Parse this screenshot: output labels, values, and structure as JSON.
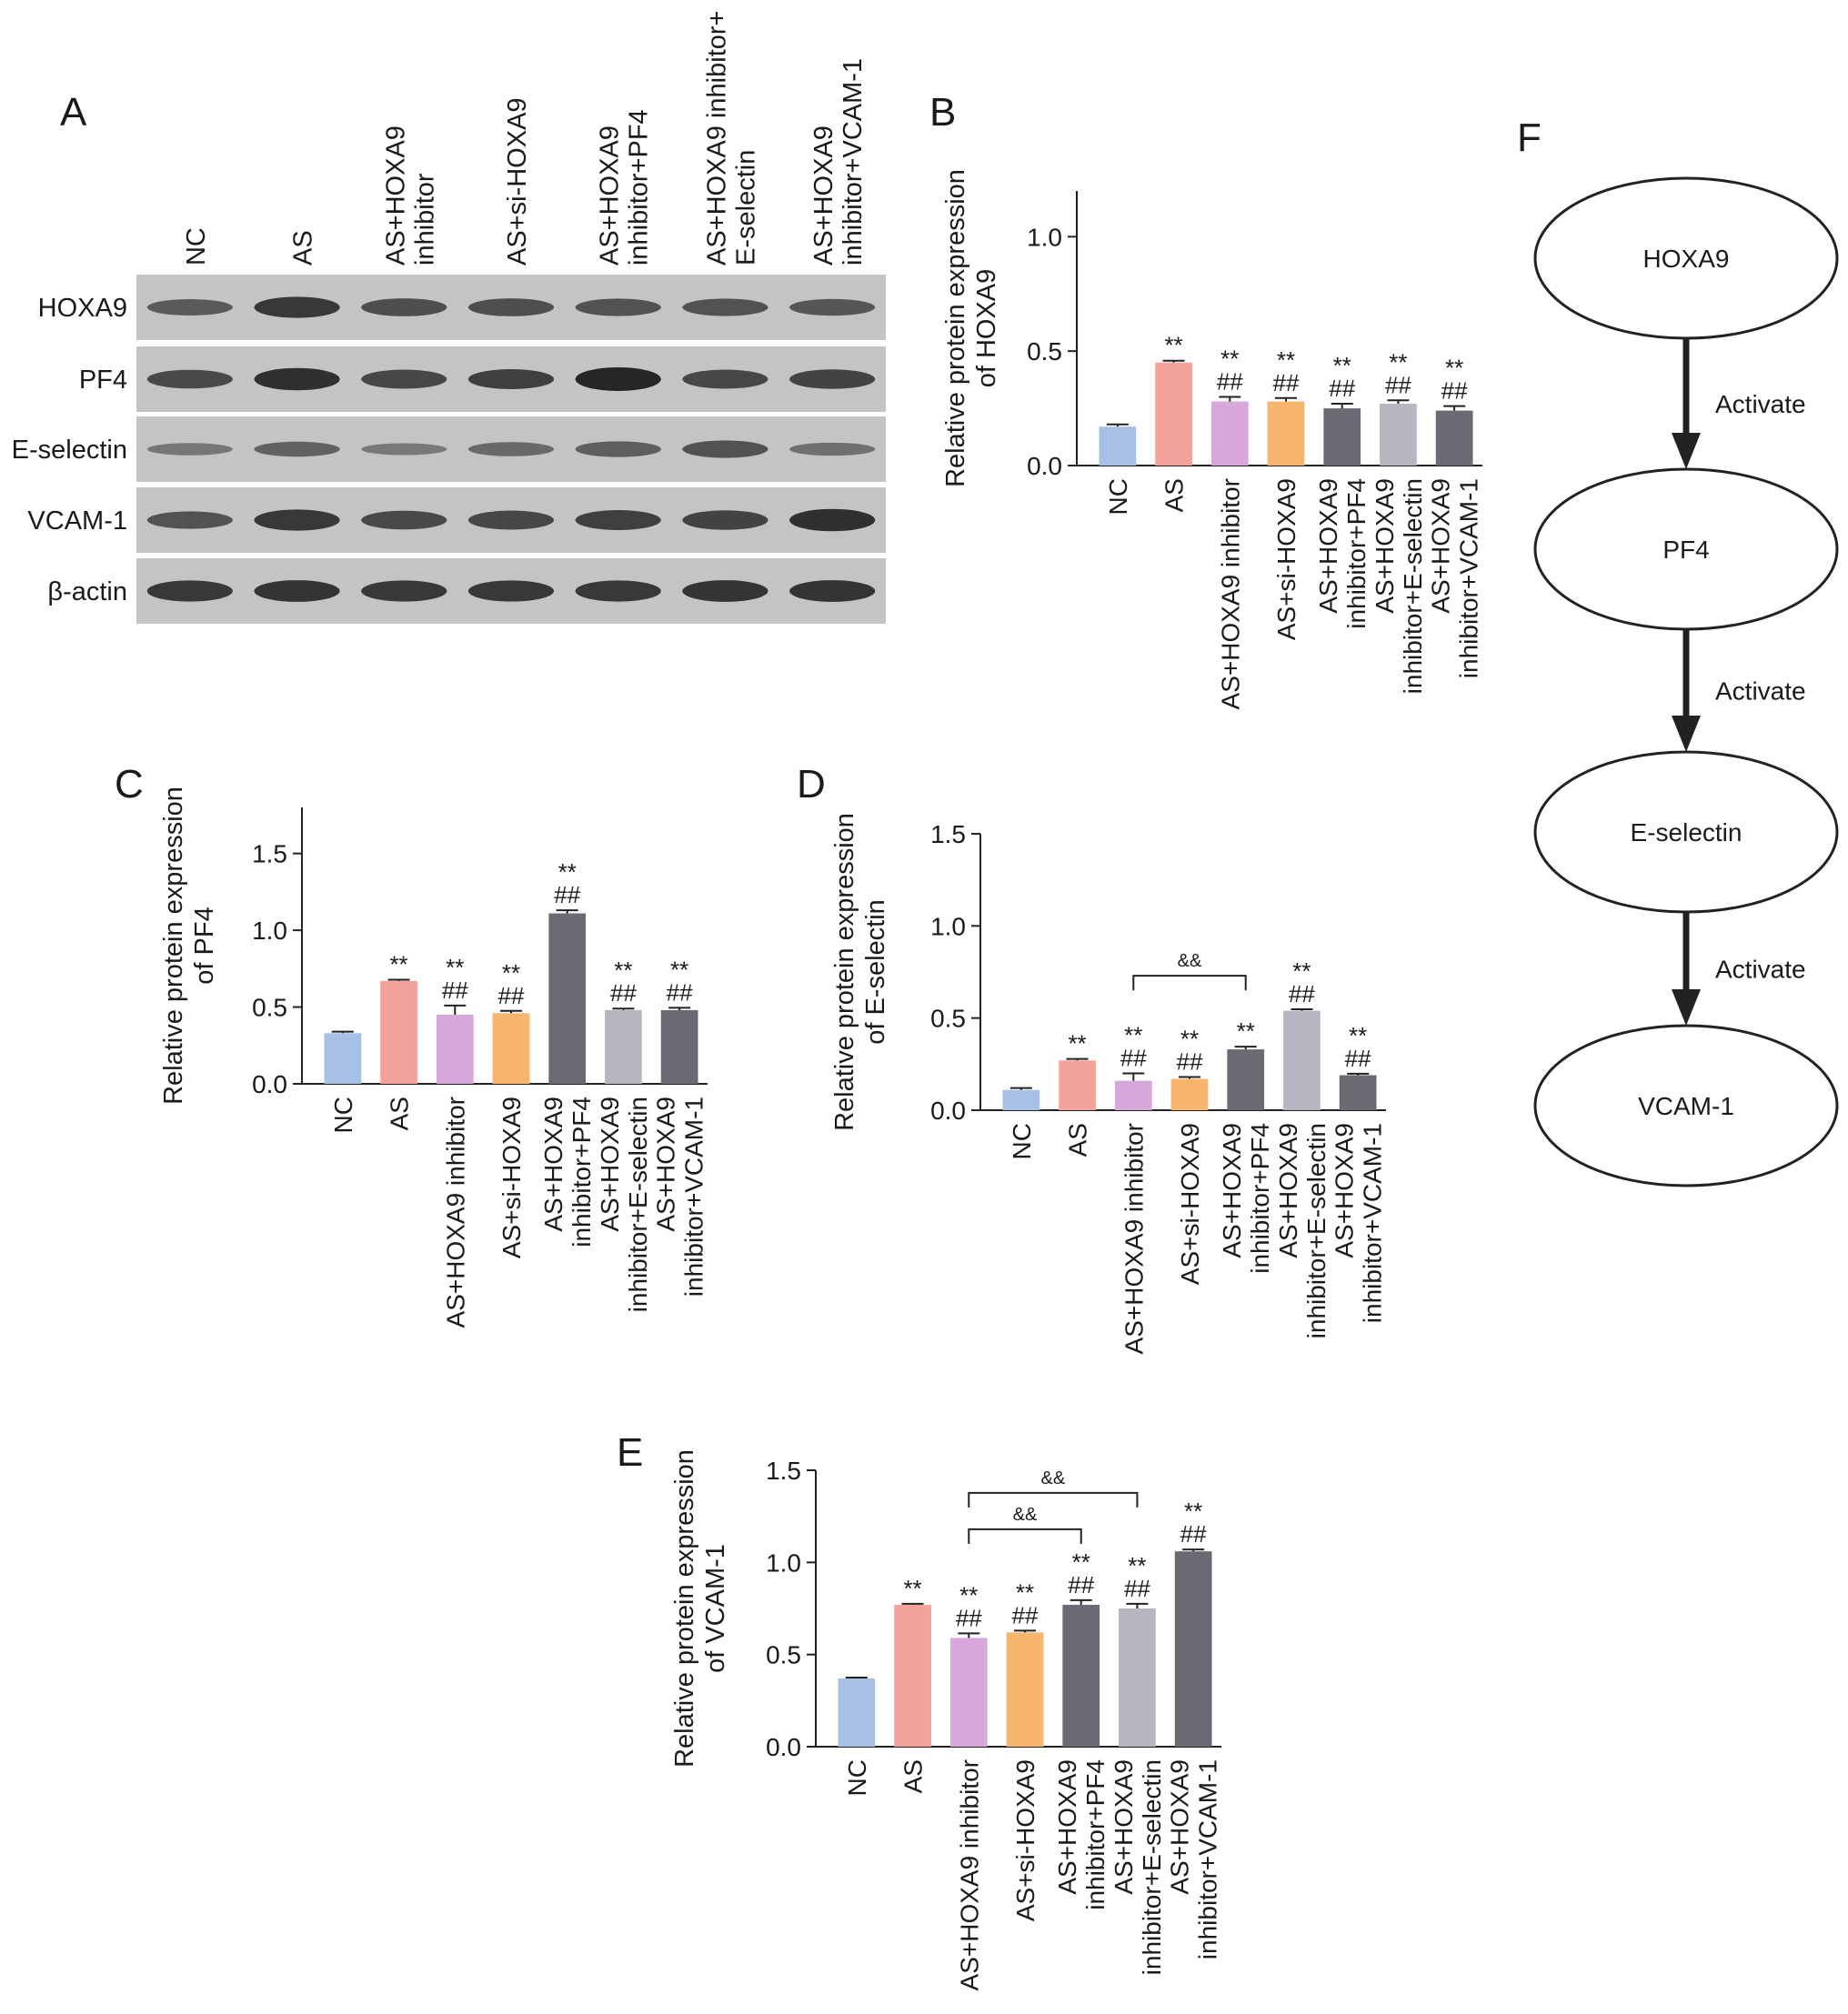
{
  "panel_labels": {
    "a": "A",
    "b": "B",
    "c": "C",
    "d": "D",
    "e": "E",
    "f": "F"
  },
  "blot": {
    "lane_labels": [
      [
        "NC"
      ],
      [
        "AS"
      ],
      [
        "AS+HOXA9",
        "inhibitor"
      ],
      [
        "AS+si-HOXA9"
      ],
      [
        "AS+HOXA9",
        "inhibitor+PF4"
      ],
      [
        "AS+HOXA9 inhibitor+",
        "E-selectin"
      ],
      [
        "AS+HOXA9",
        "inhibitor+VCAM-1"
      ]
    ],
    "row_labels": [
      "HOXA9",
      "PF4",
      "E-selectin",
      "VCAM-1",
      "β-actin"
    ],
    "band_intensity": [
      [
        0.55,
        0.85,
        0.65,
        0.65,
        0.62,
        0.62,
        0.58
      ],
      [
        0.7,
        0.92,
        0.72,
        0.78,
        1.0,
        0.72,
        0.75
      ],
      [
        0.3,
        0.48,
        0.28,
        0.42,
        0.52,
        0.62,
        0.35
      ],
      [
        0.62,
        0.85,
        0.7,
        0.72,
        0.78,
        0.75,
        0.92
      ],
      [
        0.85,
        0.88,
        0.85,
        0.85,
        0.85,
        0.88,
        0.88
      ]
    ]
  },
  "chart_data": [
    {
      "type": "bar",
      "panel": "B",
      "ylabel": [
        "Relative protein expression",
        "of HOXA9"
      ],
      "ylim": [
        0,
        1.2
      ],
      "yticks": [
        "0.0",
        "0.5",
        "1.0"
      ],
      "categories": [
        [
          "NC"
        ],
        [
          "AS"
        ],
        [
          "AS+HOXA9 inhibitor"
        ],
        [
          "AS+si-HOXA9"
        ],
        [
          "AS+HOXA9",
          "inhibitor+PF4"
        ],
        [
          "AS+HOXA9",
          "inhibitor+E-selectin"
        ],
        [
          "AS+HOXA9",
          "inhibitor+VCAM-1"
        ]
      ],
      "values": [
        0.17,
        0.45,
        0.28,
        0.28,
        0.25,
        0.27,
        0.24
      ],
      "errors": [
        0.01,
        0.008,
        0.02,
        0.015,
        0.02,
        0.015,
        0.02
      ],
      "colors": [
        "#a7c1e6",
        "#f4a39c",
        "#d7a8d9",
        "#f8b56e",
        "#6a6a72",
        "#b6b6c0",
        "#6a6a72"
      ],
      "annotations": [
        [],
        [
          "**"
        ],
        [
          "**",
          "##"
        ],
        [
          "**",
          "##"
        ],
        [
          "**",
          "##"
        ],
        [
          "**",
          "##"
        ],
        [
          "**",
          "##"
        ]
      ],
      "brackets": []
    },
    {
      "type": "bar",
      "panel": "C",
      "ylabel": [
        "Relative protein expression",
        "of PF4"
      ],
      "ylim": [
        0,
        1.8
      ],
      "yticks": [
        "0.0",
        "0.5",
        "1.0",
        "1.5"
      ],
      "categories": [
        [
          "NC"
        ],
        [
          "AS"
        ],
        [
          "AS+HOXA9 inhibitor"
        ],
        [
          "AS+si-HOXA9"
        ],
        [
          "AS+HOXA9",
          "inhibitor+PF4"
        ],
        [
          "AS+HOXA9",
          "inhibitor+E-selectin"
        ],
        [
          "AS+HOXA9",
          "inhibitor+VCAM-1"
        ]
      ],
      "values": [
        0.33,
        0.67,
        0.45,
        0.46,
        1.11,
        0.48,
        0.48
      ],
      "errors": [
        0.01,
        0.008,
        0.06,
        0.015,
        0.02,
        0.01,
        0.015
      ],
      "colors": [
        "#a7c1e6",
        "#f4a39c",
        "#d7a8d9",
        "#f8b56e",
        "#6a6a72",
        "#b6b6c0",
        "#6a6a72"
      ],
      "annotations": [
        [],
        [
          "**"
        ],
        [
          "**",
          "##"
        ],
        [
          "**",
          "##"
        ],
        [
          "**",
          "##"
        ],
        [
          "**",
          "##"
        ],
        [
          "**",
          "##"
        ]
      ],
      "brackets": []
    },
    {
      "type": "bar",
      "panel": "D",
      "ylabel": [
        "Relative protein expression",
        "of E-selectin"
      ],
      "ylim": [
        0,
        1.5
      ],
      "yticks": [
        "0.0",
        "0.5",
        "1.0",
        "1.5"
      ],
      "categories": [
        [
          "NC"
        ],
        [
          "AS"
        ],
        [
          "AS+HOXA9 inhibitor"
        ],
        [
          "AS+si-HOXA9"
        ],
        [
          "AS+HOXA9",
          "inhibitor+PF4"
        ],
        [
          "AS+HOXA9",
          "inhibitor+E-selectin"
        ],
        [
          "AS+HOXA9",
          "inhibitor+VCAM-1"
        ]
      ],
      "values": [
        0.11,
        0.27,
        0.16,
        0.17,
        0.33,
        0.54,
        0.19
      ],
      "errors": [
        0.01,
        0.008,
        0.04,
        0.01,
        0.015,
        0.008,
        0.008
      ],
      "colors": [
        "#a7c1e6",
        "#f4a39c",
        "#d7a8d9",
        "#f8b56e",
        "#6a6a72",
        "#b6b6c0",
        "#6a6a72"
      ],
      "annotations": [
        [],
        [
          "**"
        ],
        [
          "**",
          "##"
        ],
        [
          "**",
          "##"
        ],
        [
          "**"
        ],
        [
          "**",
          "##"
        ],
        [
          "**",
          "##"
        ]
      ],
      "brackets": [
        {
          "from": 2,
          "to": 4,
          "label": "&&"
        }
      ]
    },
    {
      "type": "bar",
      "panel": "E",
      "ylabel": [
        "Relative protein expression",
        "of VCAM-1"
      ],
      "ylim": [
        0,
        1.5
      ],
      "yticks": [
        "0.0",
        "0.5",
        "1.0",
        "1.5"
      ],
      "categories": [
        [
          "NC"
        ],
        [
          "AS"
        ],
        [
          "AS+HOXA9 inhibitor"
        ],
        [
          "AS+si-HOXA9"
        ],
        [
          "AS+HOXA9",
          "inhibitor+PF4"
        ],
        [
          "AS+HOXA9",
          "inhibitor+E-selectin"
        ],
        [
          "AS+HOXA9",
          "inhibitor+VCAM-1"
        ]
      ],
      "values": [
        0.37,
        0.77,
        0.59,
        0.62,
        0.77,
        0.75,
        1.06
      ],
      "errors": [
        0.005,
        0.005,
        0.025,
        0.01,
        0.025,
        0.025,
        0.01
      ],
      "colors": [
        "#a7c1e6",
        "#f4a39c",
        "#d7a8d9",
        "#f8b56e",
        "#6a6a72",
        "#b6b6c0",
        "#6a6a72"
      ],
      "annotations": [
        [],
        [
          "**"
        ],
        [
          "**",
          "##"
        ],
        [
          "**",
          "##"
        ],
        [
          "**",
          "##"
        ],
        [
          "**",
          "##"
        ],
        [
          "**",
          "##"
        ]
      ],
      "brackets": [
        {
          "from": 2,
          "to": 4,
          "label": "&&"
        },
        {
          "from": 2,
          "to": 5,
          "label": "&&"
        }
      ]
    }
  ],
  "flow": {
    "nodes": [
      "HOXA9",
      "PF4",
      "E-selectin",
      "VCAM-1"
    ],
    "edges": [
      "Activate",
      "Activate",
      "Activate"
    ]
  }
}
